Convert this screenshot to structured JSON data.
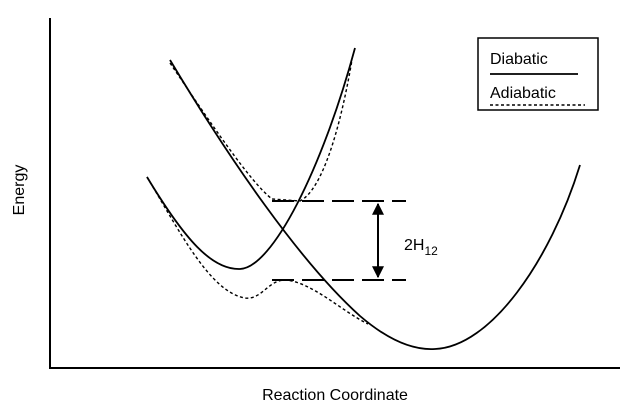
{
  "axes": {
    "y_label": "Energy",
    "x_label": "Reaction Coordinate"
  },
  "legend": {
    "items": [
      "Diabatic",
      "Adiabatic"
    ]
  },
  "annotation": {
    "text": "2H",
    "subscript": "12"
  }
}
